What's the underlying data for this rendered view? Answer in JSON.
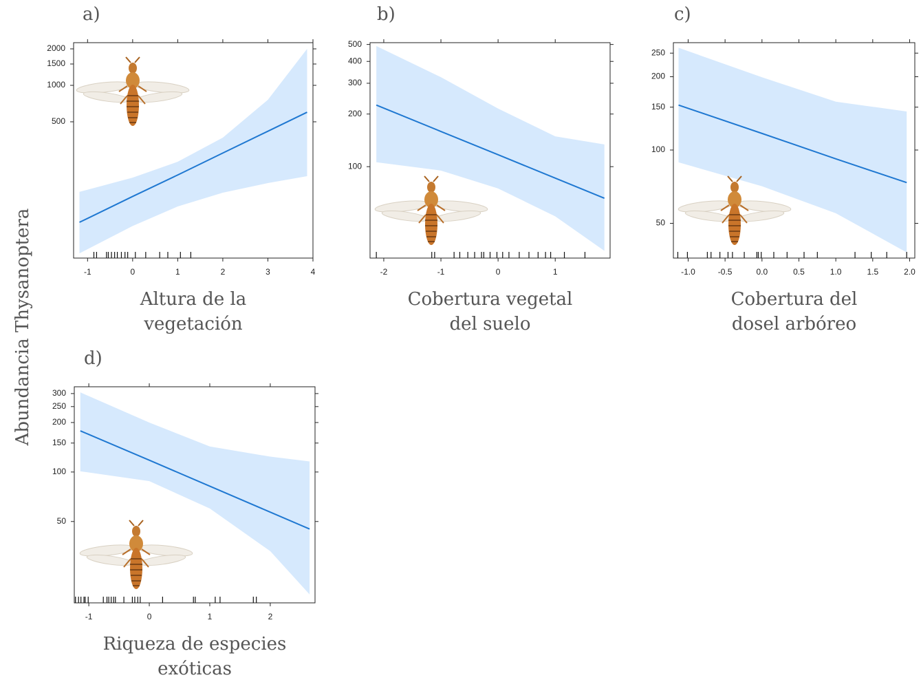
{
  "ylabel": "Abundancia Thysanoptera",
  "chart_data": [
    {
      "type": "line",
      "panel": "a)",
      "xlabel": [
        "Altura de la",
        "vegetación"
      ],
      "log_y": true,
      "color": "#1f78d1",
      "band_color": "#d6e9fd",
      "xlim": [
        -1.31,
        4.0
      ],
      "ylim": [
        37.5,
        2250
      ],
      "xticks": [
        -1,
        0,
        1,
        2,
        3,
        4
      ],
      "yticks": [
        500,
        1000,
        1500,
        2000
      ],
      "x": [
        -1.18,
        0,
        1,
        2,
        3,
        3.87
      ],
      "fit": [
        74,
        121,
        182,
        276,
        418,
        600
      ],
      "lower": [
        41,
        69,
        100,
        130,
        156,
        178
      ],
      "upper": [
        132,
        173,
        234,
        370,
        760,
        2000
      ],
      "rug": [
        -0.86,
        -0.8,
        -0.58,
        -0.54,
        -0.47,
        -0.4,
        -0.34,
        -0.25,
        -0.17,
        -0.11,
        0.06,
        0.29,
        0.6,
        0.78,
        1.06,
        1.29
      ]
    },
    {
      "type": "line",
      "panel": "b)",
      "xlabel": [
        "Cobertura vegetal",
        "del suelo"
      ],
      "log_y": true,
      "color": "#1f78d1",
      "band_color": "#d6e9fd",
      "xlim": [
        -2.24,
        1.96
      ],
      "ylim": [
        30,
        512
      ],
      "xticks": [
        -2,
        -1,
        0,
        1
      ],
      "yticks": [
        100,
        200,
        300,
        400,
        500
      ],
      "x": [
        -2.13,
        -1,
        0,
        1,
        1.86
      ],
      "fit": [
        225,
        159,
        117,
        86,
        66
      ],
      "lower": [
        106,
        95,
        75,
        52,
        33
      ],
      "upper": [
        490,
        325,
        215,
        149,
        134
      ],
      "rug": [
        -2.13,
        -1.16,
        -1.11,
        -0.77,
        -0.67,
        -0.53,
        -0.41,
        -0.29,
        -0.25,
        -0.14,
        -0.02,
        0.08,
        0.19,
        0.37,
        0.54,
        0.7,
        0.83,
        0.92,
        1.16,
        1.52
      ]
    },
    {
      "type": "line",
      "panel": "c)",
      "xlabel": [
        "Cobertura del",
        "dosel arbóreo"
      ],
      "log_y": true,
      "color": "#1f78d1",
      "band_color": "#d6e9fd",
      "xlim": [
        -1.2,
        2.07
      ],
      "ylim": [
        36,
        276
      ],
      "xticks": [
        {
          "value": -1,
          "label": "-1.0"
        },
        -0.5,
        {
          "value": 0,
          "label": "0.0"
        },
        0.5,
        {
          "value": 1,
          "label": "1.0"
        },
        1.5,
        {
          "value": 2,
          "label": "2.0"
        }
      ],
      "yticks": [
        50,
        100,
        150,
        200,
        250
      ],
      "x": [
        -1.13,
        0,
        1,
        1.96
      ],
      "fit": [
        153,
        117,
        92,
        73.5
      ],
      "lower": [
        89,
        71,
        55,
        38
      ],
      "upper": [
        263,
        199,
        158,
        144
      ],
      "rug": [
        -1.14,
        -1.01,
        -0.74,
        -0.69,
        -0.57,
        -0.46,
        -0.4,
        -0.24,
        -0.07,
        -0.05,
        -0.01,
        0.16,
        0.34,
        0.57,
        0.75,
        1.26,
        1.48,
        1.69,
        1.96
      ]
    },
    {
      "type": "line",
      "panel": "d)",
      "xlabel": [
        "Riqueza de especies",
        "exóticas"
      ],
      "log_y": true,
      "color": "#1f78d1",
      "band_color": "#d6e9fd",
      "xlim": [
        -1.24,
        2.74
      ],
      "ylim": [
        16,
        330
      ],
      "xticks": [
        -1,
        0,
        1,
        2
      ],
      "yticks": [
        50,
        100,
        150,
        200,
        250,
        300
      ],
      "x": [
        -1.14,
        0,
        1,
        2,
        2.65
      ],
      "fit": [
        178,
        118,
        82,
        57,
        45
      ],
      "lower": [
        101,
        88,
        60,
        33,
        18
      ],
      "upper": [
        305,
        200,
        143,
        124,
        116
      ],
      "rug": [
        -1.22,
        -1.17,
        -1.13,
        -1.08,
        -1.06,
        -1.01,
        -0.76,
        -0.7,
        -0.67,
        -0.63,
        -0.59,
        -0.56,
        -0.42,
        -0.28,
        -0.24,
        -0.19,
        -0.15,
        0.22,
        0.73,
        0.76,
        1.09,
        1.17,
        1.72,
        1.77
      ]
    }
  ]
}
